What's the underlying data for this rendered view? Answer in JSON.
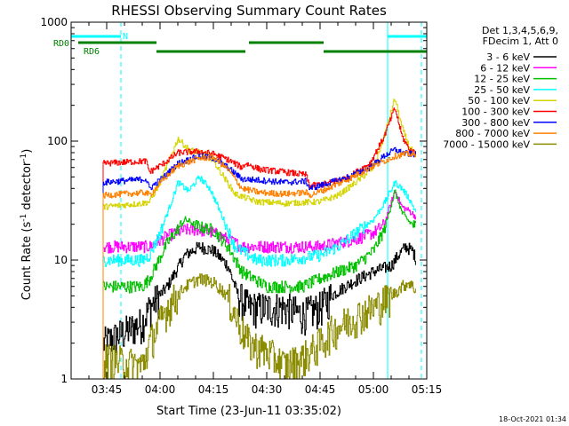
{
  "chart_data": {
    "type": "line",
    "title": "RHESSI Observing Summary Count Rates",
    "xlabel": "Start Time (23-Jun-11 03:35:02)",
    "ylabel": "Count Rate (s-1 detector-1)",
    "ylabel_parts": {
      "main": "Count Rate (s",
      "sup1": "-1",
      "mid": " detector",
      "sup2": "-1",
      "end": ")"
    },
    "y_scale": "log",
    "ylim": [
      1,
      1000
    ],
    "xlim_minutes": [
      0,
      100
    ],
    "x_tick_labels": [
      "03:45",
      "04:00",
      "04:15",
      "04:30",
      "04:45",
      "05:00",
      "05:15"
    ],
    "y_tick_labels": [
      "1",
      "10",
      "100",
      "1000"
    ],
    "legend_header": [
      "Det 1,3,4,5,6,9,",
      "FDecim 1, Att 0"
    ],
    "series": [
      {
        "name": "3 - 6 keV",
        "color": "#000000",
        "values": [
          [
            9,
            2
          ],
          [
            20,
            3
          ],
          [
            22,
            4
          ],
          [
            27,
            6
          ],
          [
            32,
            11
          ],
          [
            36,
            13
          ],
          [
            40,
            12
          ],
          [
            44,
            9
          ],
          [
            47,
            5
          ],
          [
            50,
            4
          ],
          [
            55,
            4
          ],
          [
            60,
            4
          ],
          [
            65,
            3.5
          ],
          [
            70,
            4
          ],
          [
            73,
            5
          ],
          [
            77,
            6
          ],
          [
            81,
            7
          ],
          [
            85,
            8
          ],
          [
            90,
            9
          ],
          [
            92,
            11
          ],
          [
            94,
            13
          ],
          [
            96,
            12
          ],
          [
            97,
            10
          ]
        ]
      },
      {
        "name": "6 - 12 keV",
        "color": "#ff00ff",
        "values": [
          [
            9,
            13
          ],
          [
            20,
            13
          ],
          [
            22,
            13
          ],
          [
            27,
            16
          ],
          [
            32,
            18
          ],
          [
            36,
            18
          ],
          [
            40,
            17
          ],
          [
            44,
            15
          ],
          [
            48,
            13
          ],
          [
            55,
            13
          ],
          [
            60,
            13
          ],
          [
            65,
            13
          ],
          [
            70,
            13
          ],
          [
            75,
            14
          ],
          [
            80,
            15
          ],
          [
            85,
            17
          ],
          [
            88,
            20
          ],
          [
            91,
            38
          ],
          [
            93,
            28
          ],
          [
            95,
            26
          ],
          [
            97,
            23
          ]
        ]
      },
      {
        "name": "12 - 25 keV",
        "color": "#00c000",
        "values": [
          [
            9,
            6
          ],
          [
            20,
            6
          ],
          [
            22,
            7
          ],
          [
            27,
            14
          ],
          [
            32,
            22
          ],
          [
            36,
            19
          ],
          [
            40,
            18
          ],
          [
            44,
            13
          ],
          [
            48,
            8
          ],
          [
            55,
            6
          ],
          [
            60,
            6
          ],
          [
            65,
            6
          ],
          [
            70,
            7
          ],
          [
            75,
            8
          ],
          [
            80,
            9
          ],
          [
            85,
            12
          ],
          [
            88,
            18
          ],
          [
            91,
            38
          ],
          [
            93,
            25
          ],
          [
            95,
            21
          ],
          [
            97,
            19
          ]
        ]
      },
      {
        "name": "25 - 50 keV",
        "color": "#00ffff",
        "values": [
          [
            9,
            10
          ],
          [
            20,
            10
          ],
          [
            22,
            11
          ],
          [
            25,
            17
          ],
          [
            28,
            30
          ],
          [
            30,
            45
          ],
          [
            33,
            38
          ],
          [
            36,
            50
          ],
          [
            39,
            40
          ],
          [
            42,
            25
          ],
          [
            46,
            13
          ],
          [
            52,
            10
          ],
          [
            60,
            10
          ],
          [
            70,
            11
          ],
          [
            75,
            13
          ],
          [
            80,
            17
          ],
          [
            85,
            22
          ],
          [
            88,
            30
          ],
          [
            91,
            45
          ],
          [
            93,
            40
          ],
          [
            95,
            33
          ],
          [
            97,
            25
          ]
        ]
      },
      {
        "name": "50 - 100 keV",
        "color": "#d4d400",
        "values": [
          [
            9,
            28
          ],
          [
            20,
            30
          ],
          [
            22,
            31
          ],
          [
            25,
            45
          ],
          [
            28,
            75
          ],
          [
            30,
            105
          ],
          [
            33,
            85
          ],
          [
            36,
            80
          ],
          [
            39,
            75
          ],
          [
            42,
            55
          ],
          [
            46,
            36
          ],
          [
            52,
            31
          ],
          [
            60,
            30
          ],
          [
            70,
            31
          ],
          [
            75,
            35
          ],
          [
            80,
            45
          ],
          [
            85,
            60
          ],
          [
            88,
            110
          ],
          [
            91,
            230
          ],
          [
            93,
            130
          ],
          [
            95,
            90
          ],
          [
            97,
            75
          ]
        ]
      },
      {
        "name": "100 - 300 keV",
        "color": "#ff0000",
        "values": [
          [
            9,
            65
          ],
          [
            21,
            68
          ],
          [
            22,
            55
          ],
          [
            26,
            65
          ],
          [
            30,
            80
          ],
          [
            36,
            82
          ],
          [
            40,
            78
          ],
          [
            44,
            70
          ],
          [
            48,
            60
          ],
          [
            49,
            65
          ],
          [
            53,
            58
          ],
          [
            60,
            55
          ],
          [
            66,
            52
          ],
          [
            67,
            42
          ],
          [
            72,
            44
          ],
          [
            78,
            50
          ],
          [
            84,
            65
          ],
          [
            88,
            110
          ],
          [
            91,
            190
          ],
          [
            93,
            110
          ],
          [
            95,
            85
          ],
          [
            97,
            78
          ]
        ]
      },
      {
        "name": "300 - 800 keV",
        "color": "#0000ff",
        "values": [
          [
            9,
            45
          ],
          [
            21,
            48
          ],
          [
            22,
            40
          ],
          [
            26,
            50
          ],
          [
            30,
            65
          ],
          [
            36,
            75
          ],
          [
            40,
            72
          ],
          [
            44,
            60
          ],
          [
            48,
            48
          ],
          [
            53,
            47
          ],
          [
            60,
            45
          ],
          [
            66,
            46
          ],
          [
            67,
            40
          ],
          [
            72,
            44
          ],
          [
            78,
            50
          ],
          [
            84,
            60
          ],
          [
            88,
            75
          ],
          [
            91,
            85
          ],
          [
            93,
            80
          ],
          [
            95,
            78
          ],
          [
            97,
            78
          ]
        ]
      },
      {
        "name": "800 - 7000 keV",
        "color": "#ff8000",
        "values": [
          [
            9,
            35
          ],
          [
            21,
            37
          ],
          [
            22,
            35
          ],
          [
            26,
            48
          ],
          [
            30,
            62
          ],
          [
            36,
            72
          ],
          [
            40,
            73
          ],
          [
            44,
            58
          ],
          [
            48,
            40
          ],
          [
            53,
            37
          ],
          [
            60,
            36
          ],
          [
            66,
            37
          ],
          [
            67,
            35
          ],
          [
            72,
            40
          ],
          [
            78,
            48
          ],
          [
            84,
            60
          ],
          [
            88,
            68
          ],
          [
            91,
            75
          ],
          [
            93,
            77
          ],
          [
            95,
            78
          ],
          [
            97,
            75
          ]
        ]
      },
      {
        "name": "7000 - 15000 keV",
        "color": "#8b8b00",
        "values": [
          [
            9,
            1.5
          ],
          [
            20,
            1.3
          ],
          [
            22,
            2
          ],
          [
            27,
            4
          ],
          [
            32,
            6
          ],
          [
            36,
            7
          ],
          [
            40,
            6.5
          ],
          [
            44,
            5
          ],
          [
            47,
            3
          ],
          [
            50,
            2
          ],
          [
            55,
            1.7
          ],
          [
            60,
            1.3
          ],
          [
            65,
            1.5
          ],
          [
            70,
            2
          ],
          [
            73,
            2.5
          ],
          [
            77,
            3
          ],
          [
            81,
            3.5
          ],
          [
            85,
            4
          ],
          [
            90,
            5
          ],
          [
            93,
            6
          ],
          [
            95,
            6.5
          ],
          [
            97,
            5.5
          ]
        ]
      }
    ],
    "markers": {
      "rd0_label": "RD0",
      "rd6_label": "RD6",
      "n_label": "N",
      "saa_color": "#00ffff",
      "rd_color": "#008000"
    }
  },
  "footer": {
    "timestamp": "18-Oct-2021 01:34"
  }
}
